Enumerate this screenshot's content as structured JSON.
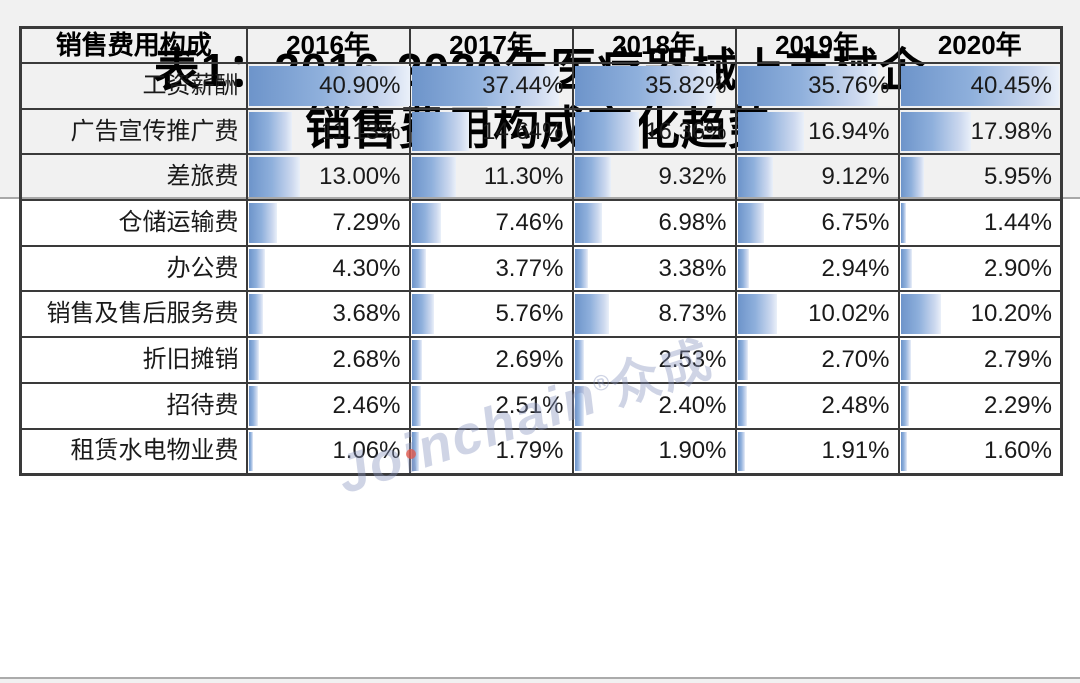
{
  "title": {
    "line1": "表1：2016-2020年医疗器械上市械企",
    "line2": "销售费用构成变化趋势"
  },
  "watermark": {
    "brand": "Joinchain",
    "reg": "®",
    "suffix": "众成"
  },
  "colors": {
    "bar_start": "#6d94ca",
    "bar_mid": "#8fb0dc",
    "bar_light": "#cdd9ef",
    "bar_fade": "#eaf0f9",
    "border": "#3a3a3a",
    "background": "#f1f1f1",
    "panel": "#ffffff"
  },
  "chart_data": {
    "type": "table",
    "title": "表1：2016-2020年医疗器械上市械企销售费用构成变化趋势",
    "columns": [
      "销售费用构成",
      "2016年",
      "2017年",
      "2018年",
      "2019年",
      "2020年"
    ],
    "rows": [
      {
        "label": "工资薪酬",
        "values": [
          40.9,
          37.44,
          35.82,
          35.76,
          40.45
        ]
      },
      {
        "label": "广告宣传推广费",
        "values": [
          11.13,
          14.64,
          16.36,
          16.94,
          17.98
        ]
      },
      {
        "label": "差旅费",
        "values": [
          13.0,
          11.3,
          9.32,
          9.12,
          5.95
        ]
      },
      {
        "label": "仓储运输费",
        "values": [
          7.29,
          7.46,
          6.98,
          6.75,
          1.44
        ]
      },
      {
        "label": "办公费",
        "values": [
          4.3,
          3.77,
          3.38,
          2.94,
          2.9
        ]
      },
      {
        "label": "销售及售后服务费",
        "values": [
          3.68,
          5.76,
          8.73,
          10.02,
          10.2
        ]
      },
      {
        "label": "折旧摊销",
        "values": [
          2.68,
          2.69,
          2.53,
          2.7,
          2.79
        ]
      },
      {
        "label": "招待费",
        "values": [
          2.46,
          2.51,
          2.4,
          2.48,
          2.29
        ]
      },
      {
        "label": "租赁水电物业费",
        "values": [
          1.06,
          1.79,
          1.9,
          1.91,
          1.6
        ]
      }
    ],
    "value_suffix": "%",
    "value_decimals": 2,
    "bar_scale_max": 40.9,
    "layout": "data bars fill left-to-right, scaled to max value; labels and values right-aligned; year headers centered bold"
  }
}
